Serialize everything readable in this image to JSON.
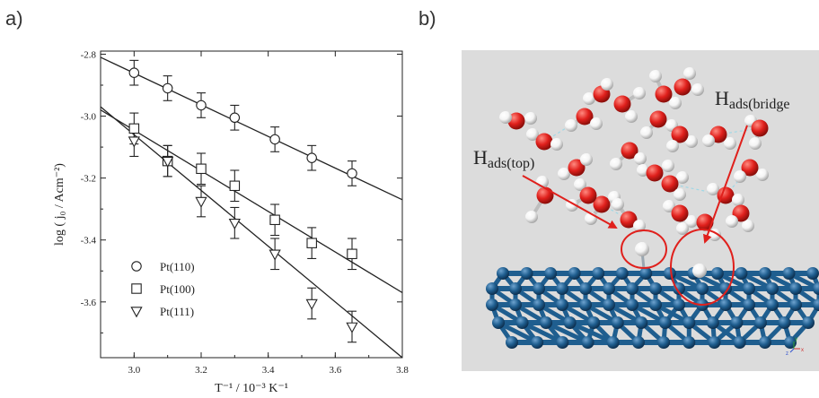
{
  "panels": {
    "a_label": "a)",
    "b_label": "b)"
  },
  "chart_data": {
    "type": "scatter",
    "title": "",
    "xlabel": "T⁻¹ / 10⁻³ K⁻¹",
    "ylabel": "log ( j₀ / Acm⁻²)",
    "xlim": [
      2.9,
      3.8
    ],
    "ylim": [
      -3.78,
      -2.79
    ],
    "x_ticks": [
      3.0,
      3.2,
      3.4,
      3.6,
      3.8
    ],
    "x_tick_labels": [
      "3.0",
      "3.2",
      "3.4",
      "3.6",
      "3.8"
    ],
    "y_ticks": [
      -2.8,
      -3.0,
      -3.2,
      -3.4,
      -3.6
    ],
    "y_tick_labels": [
      "-2.8",
      "-3.0",
      "-3.2",
      "-3.4",
      "-3.6"
    ],
    "grid": false,
    "legend_position": "lower-left",
    "series": [
      {
        "name": "Pt(110)",
        "marker": "circle",
        "x": [
          3.0,
          3.1,
          3.2,
          3.3,
          3.42,
          3.53,
          3.65
        ],
        "y": [
          -2.86,
          -2.91,
          -2.965,
          -3.005,
          -3.075,
          -3.135,
          -3.185
        ],
        "err": [
          0.04,
          0.04,
          0.04,
          0.04,
          0.04,
          0.04,
          0.04
        ],
        "fit": {
          "x": [
            2.9,
            3.8
          ],
          "y": [
            -2.81,
            -3.27
          ]
        }
      },
      {
        "name": "Pt(100)",
        "marker": "square",
        "x": [
          3.0,
          3.1,
          3.2,
          3.3,
          3.42,
          3.53,
          3.65
        ],
        "y": [
          -3.04,
          -3.145,
          -3.17,
          -3.225,
          -3.335,
          -3.41,
          -3.445
        ],
        "err": [
          0.05,
          0.05,
          0.05,
          0.05,
          0.05,
          0.05,
          0.05
        ],
        "fit": {
          "x": [
            2.9,
            3.8
          ],
          "y": [
            -2.98,
            -3.57
          ]
        }
      },
      {
        "name": "Pt(111)",
        "marker": "triangle-down",
        "x": [
          3.0,
          3.1,
          3.2,
          3.3,
          3.42,
          3.53,
          3.65
        ],
        "y": [
          -3.08,
          -3.145,
          -3.275,
          -3.345,
          -3.445,
          -3.605,
          -3.68
        ],
        "err": [
          0.05,
          0.05,
          0.05,
          0.05,
          0.05,
          0.05,
          0.05
        ],
        "fit": {
          "x": [
            2.9,
            3.8
          ],
          "y": [
            -2.97,
            -3.78
          ]
        }
      }
    ]
  },
  "scene": {
    "label_top": "H",
    "label_top_sub": "ads(top)",
    "label_bridge": "H",
    "label_bridge_sub": "ads(bridge",
    "background_color": "#dcdcdc",
    "oxygen_color": "#e0201c",
    "hydrogen_color": "#f4f4f4",
    "platinum_color": "#1f5e8f",
    "arrow_color": "#e0201c",
    "axis_x_label": "x",
    "axis_y_label": "y",
    "axis_z_label": "z"
  }
}
